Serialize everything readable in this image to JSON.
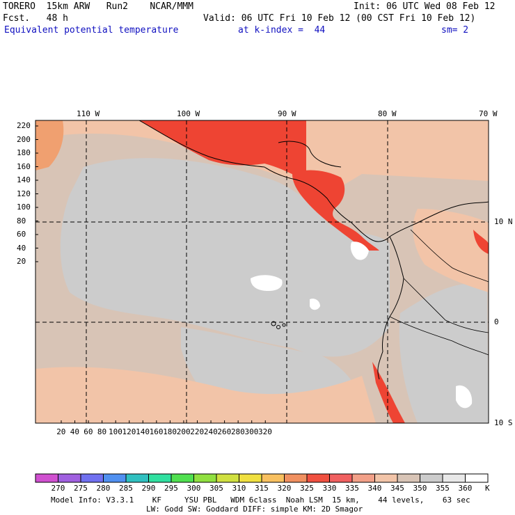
{
  "header": {
    "model_line": "TORERO  15km ARW   Run2    NCAR/MMM",
    "init": "Init: 06 UTC Wed 08 Feb 12",
    "fcst": "Fcst.   48 h",
    "valid": "Valid: 06 UTC Fri 10 Feb 12 (00 CST Fri 10 Feb 12)",
    "field": "Equivalent potential temperature",
    "level": "at k-index =  44",
    "smoothing": "sm= 2"
  },
  "map": {
    "top_lon_labels": [
      "110 W",
      "100 W",
      "90 W",
      "80 W",
      "70 W"
    ],
    "right_lat_labels": [
      "10 N",
      "0",
      "10 S"
    ],
    "left_ticks": [
      "220",
      "200",
      "180",
      "160",
      "140",
      "120",
      "100",
      "80",
      "60",
      "40",
      "20"
    ],
    "bottom_ticks": [
      "20",
      "40",
      "60",
      "80",
      "100",
      "120",
      "140",
      "160",
      "180",
      "200",
      "220",
      "240",
      "260",
      "280",
      "300",
      "320"
    ],
    "colors": {
      "warm_band": "#ee4433",
      "orange": "#f0a070",
      "peach": "#f2c4a8",
      "tan": "#d8c4b6",
      "gray": "#cccccc",
      "white": "#ffffff"
    }
  },
  "colorbar": {
    "labels": [
      "270",
      "275",
      "280",
      "285",
      "290",
      "295",
      "300",
      "305",
      "310",
      "315",
      "320",
      "325",
      "330",
      "335",
      "340",
      "345",
      "350",
      "355",
      "360"
    ],
    "unit": "K",
    "colors": [
      "#d050d0",
      "#a060e0",
      "#7070f0",
      "#5090f0",
      "#30c0c0",
      "#30e0a0",
      "#50e050",
      "#90e040",
      "#d0e040",
      "#f0e040",
      "#f8c060",
      "#f09060",
      "#f05040",
      "#f06060",
      "#f2a088",
      "#f2c4a8",
      "#d8c4b6",
      "#cccccc",
      "#e8e8e8",
      "#ffffff"
    ]
  },
  "footer": {
    "line1": "Model Info: V3.3.1    KF     YSU PBL   WDM 6class  Noah LSM  15 km,    44 levels,    63 sec",
    "line2": "LW: Godd SW: Goddard DIFF: simple KM: 2D Smagor"
  }
}
